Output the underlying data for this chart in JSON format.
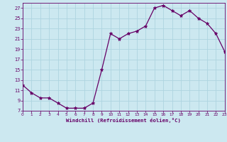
{
  "data_points": [
    [
      0,
      12
    ],
    [
      1,
      10.5
    ],
    [
      2,
      9.5
    ],
    [
      3,
      9.5
    ],
    [
      4,
      8.5
    ],
    [
      5,
      7.5
    ],
    [
      6,
      7.5
    ],
    [
      7,
      7.5
    ],
    [
      8,
      8.5
    ],
    [
      9,
      15
    ],
    [
      10,
      22
    ],
    [
      11,
      21
    ],
    [
      12,
      22
    ],
    [
      13,
      22.5
    ],
    [
      14,
      23.5
    ],
    [
      15,
      27
    ],
    [
      16,
      27.5
    ],
    [
      17,
      26.5
    ],
    [
      18,
      25.5
    ],
    [
      19,
      26.5
    ],
    [
      20,
      25
    ],
    [
      21,
      24
    ],
    [
      22,
      22
    ],
    [
      23,
      18.5
    ]
  ],
  "xlim": [
    0,
    23
  ],
  "ylim": [
    7,
    28
  ],
  "yticks": [
    7,
    9,
    11,
    13,
    15,
    17,
    19,
    21,
    23,
    25,
    27
  ],
  "xticks": [
    0,
    1,
    2,
    3,
    4,
    5,
    6,
    7,
    8,
    9,
    10,
    11,
    12,
    13,
    14,
    15,
    16,
    17,
    18,
    19,
    20,
    21,
    22,
    23
  ],
  "xlabel": "Windchill (Refroidissement éolien,°C)",
  "line_color": "#660066",
  "marker_color": "#660066",
  "bg_color": "#cce8f0",
  "grid_color": "#aed4e0",
  "axis_label_color": "#660066",
  "tick_label_color": "#660066"
}
